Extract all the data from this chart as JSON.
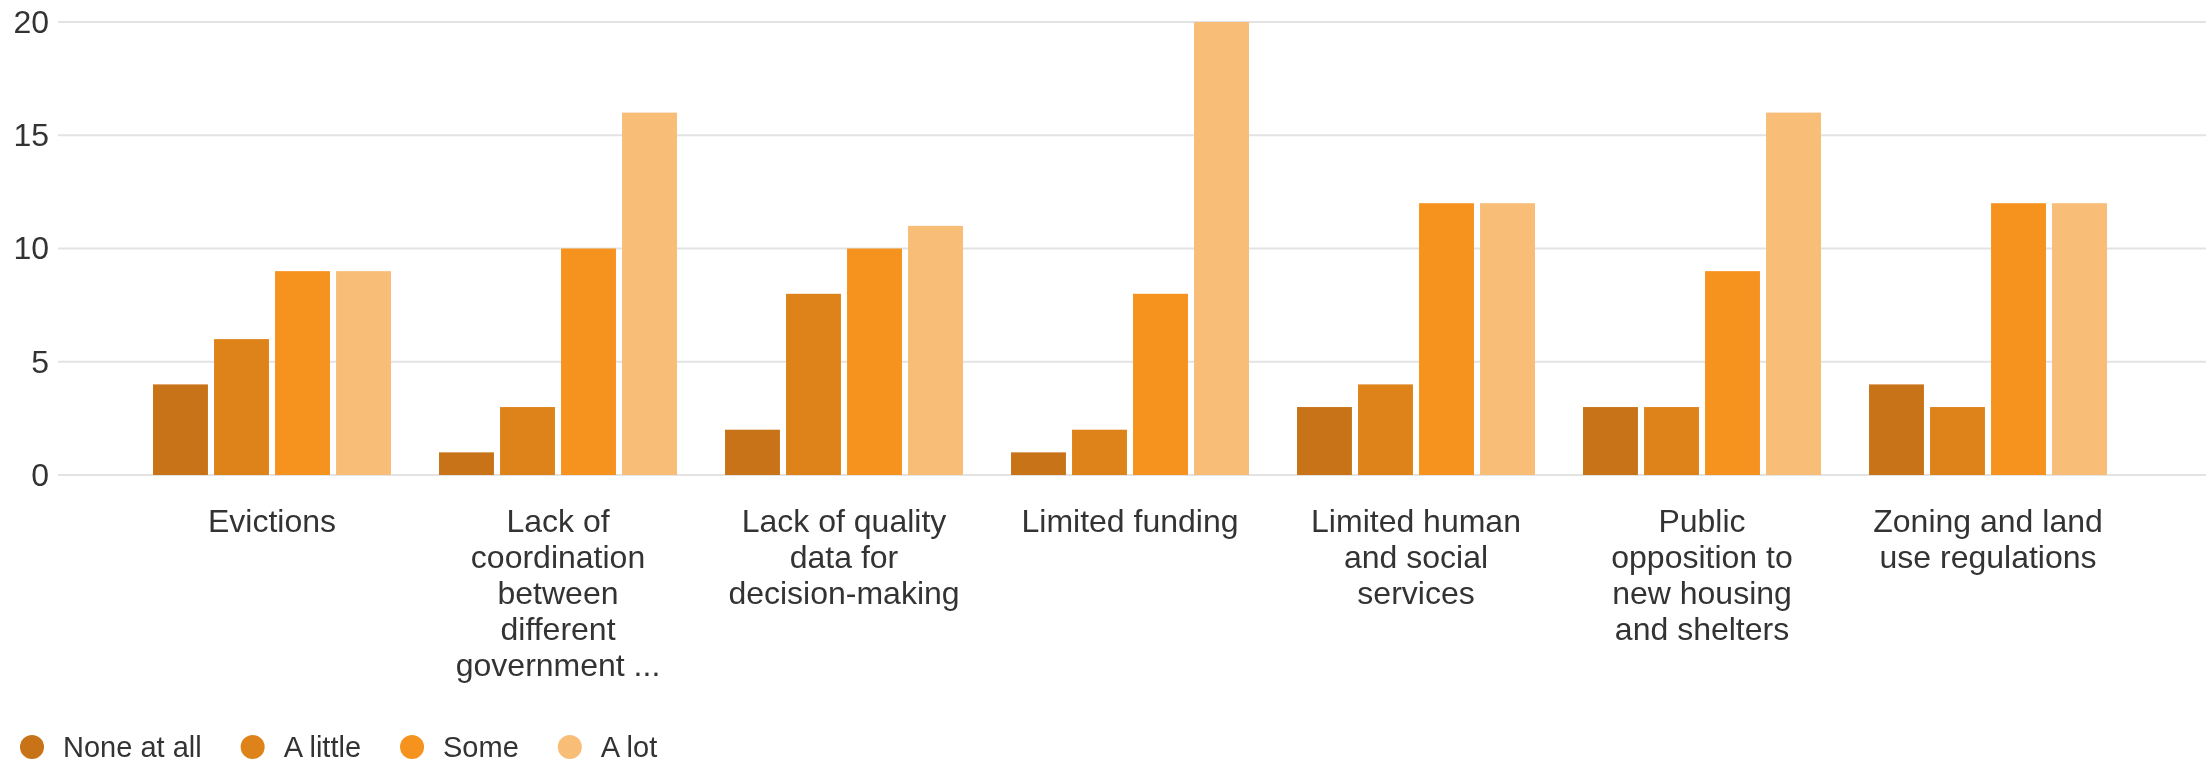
{
  "chart_data": {
    "type": "bar",
    "categories": [
      "Evictions",
      "Lack of coordination between different government ...",
      "Lack of quality data for decision-making",
      "Limited funding",
      "Limited human and social services",
      "Public opposition to new housing and shelters",
      "Zoning and land use regulations"
    ],
    "series": [
      {
        "name": "None at all",
        "color": "#c87317",
        "values": [
          4,
          1,
          2,
          1,
          3,
          3,
          4
        ]
      },
      {
        "name": "A little",
        "color": "#de831a",
        "values": [
          6,
          3,
          8,
          2,
          4,
          3,
          3
        ]
      },
      {
        "name": "Some",
        "color": "#f6921e",
        "values": [
          9,
          10,
          10,
          8,
          12,
          9,
          12
        ]
      },
      {
        "name": "A lot",
        "color": "#f8bd77",
        "values": [
          9,
          16,
          11,
          20,
          12,
          16,
          12
        ]
      }
    ],
    "ylim": [
      0,
      20
    ],
    "yticks": [
      0,
      5,
      10,
      15,
      20
    ],
    "grid": "y",
    "legend": "bottom left"
  }
}
